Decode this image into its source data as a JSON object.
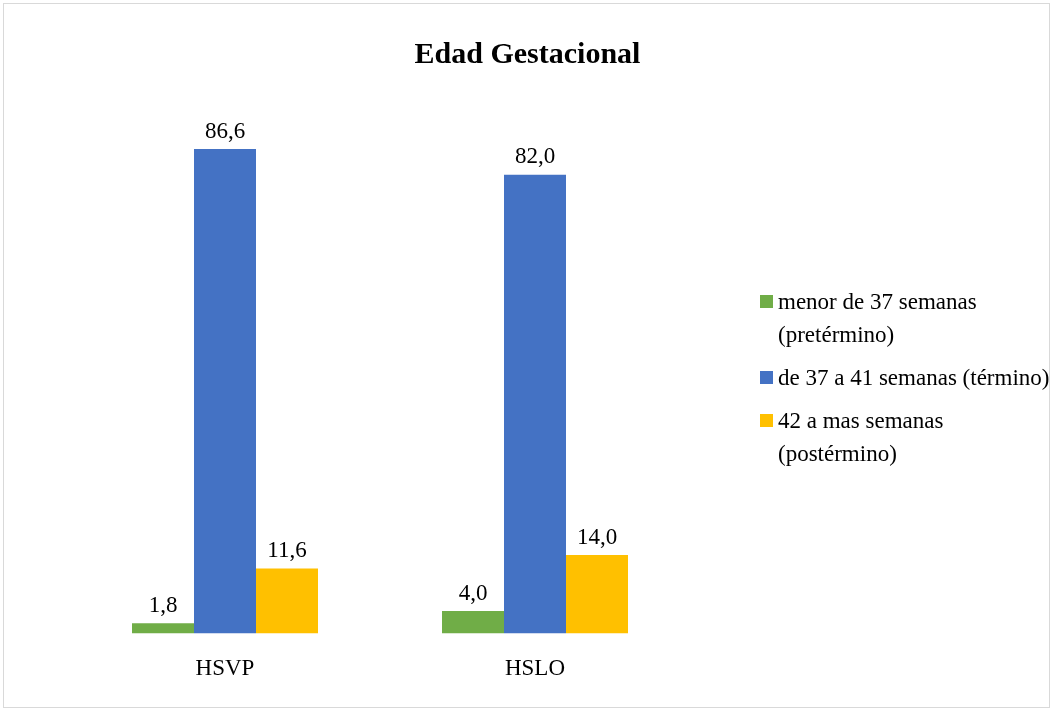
{
  "chart_data": {
    "type": "bar",
    "title": "Edad Gestacional",
    "categories": [
      "HSVP",
      "HSLO"
    ],
    "legend": "right",
    "grid": false,
    "series": [
      {
        "name": "menor de 37 semanas (pretérmino)",
        "color": "#70ad47",
        "values": [
          1.8,
          4.0
        ],
        "value_labels": [
          "1,8",
          "4,0"
        ]
      },
      {
        "name": "de 37 a 41 semanas (término)",
        "color": "#4472c4",
        "values": [
          86.6,
          82.0
        ],
        "value_labels": [
          "86,6",
          "82,0"
        ]
      },
      {
        "name": "42 a mas semanas (postérmino)",
        "color": "#ffc000",
        "values": [
          11.6,
          14.0
        ],
        "value_labels": [
          "11,6",
          "14,0"
        ]
      }
    ]
  }
}
